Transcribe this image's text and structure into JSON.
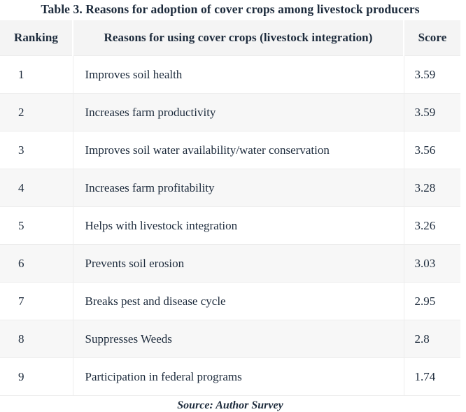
{
  "title": "Table 3. Reasons for adoption of cover crops among livestock producers",
  "columns": {
    "ranking": "Ranking",
    "reason": "Reasons for using cover crops (livestock integration)",
    "score": "Score"
  },
  "rows": [
    {
      "ranking": "1",
      "reason": "Improves soil health",
      "score": "3.59"
    },
    {
      "ranking": "2",
      "reason": "Increases farm productivity",
      "score": "3.59"
    },
    {
      "ranking": "3",
      "reason": "Improves soil water availability/water conservation",
      "score": "3.56"
    },
    {
      "ranking": "4",
      "reason": "Increases farm profitability",
      "score": "3.28"
    },
    {
      "ranking": "5",
      "reason": "Helps with livestock integration",
      "score": "3.26"
    },
    {
      "ranking": "6",
      "reason": "Prevents soil erosion",
      "score": "3.03"
    },
    {
      "ranking": "7",
      "reason": "Breaks pest and disease cycle",
      "score": "2.95"
    },
    {
      "ranking": "8",
      "reason": "Suppresses Weeds",
      "score": "2.8"
    },
    {
      "ranking": "9",
      "reason": "Participation in federal programs",
      "score": "1.74"
    }
  ],
  "footer": {
    "source": "Source: Author Survey"
  },
  "colors": {
    "text": "#1d2b3c",
    "header_bg": "#f4f4f4",
    "stripe_bg": "#f7f7f7",
    "border": "#ededed",
    "background": "#ffffff"
  },
  "chart_data": {
    "type": "table",
    "title": "Table 3. Reasons for adoption of cover crops among livestock producers",
    "columns": [
      "Ranking",
      "Reasons for using cover crops (livestock integration)",
      "Score"
    ],
    "rows": [
      [
        1,
        "Improves soil health",
        3.59
      ],
      [
        2,
        "Increases farm productivity",
        3.59
      ],
      [
        3,
        "Improves soil water availability/water conservation",
        3.56
      ],
      [
        4,
        "Increases farm profitability",
        3.28
      ],
      [
        5,
        "Helps with livestock integration",
        3.26
      ],
      [
        6,
        "Prevents soil erosion",
        3.03
      ],
      [
        7,
        "Breaks pest and disease cycle",
        2.95
      ],
      [
        8,
        "Suppresses Weeds",
        2.8
      ],
      [
        9,
        "Participation in federal programs",
        1.74
      ]
    ],
    "source": "Source: Author Survey",
    "layout": {
      "zebra_striping": true,
      "header_background": "#f4f4f4",
      "title_position": "top-center",
      "source_position": "bottom-center"
    }
  }
}
